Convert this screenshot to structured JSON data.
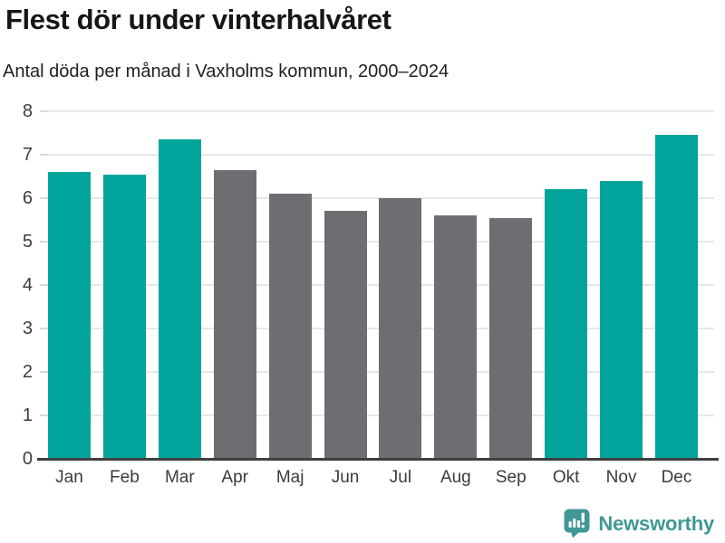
{
  "title": "Flest dör under vinterhalvåret",
  "subtitle": "Antal döda per månad i Vaxholms kommun, 2000–2024",
  "colors": {
    "winter": "#00a49a",
    "summer": "#6e6d72",
    "gridline": "#e7e7e7",
    "axis": "#3f3f3f",
    "brand": "#3f9894"
  },
  "footer": {
    "brand": "Newsworthy",
    "logo_icon": "newsworthy-speech-bubble-bar-chart-icon"
  },
  "chart_data": {
    "type": "bar",
    "title": "Flest dör under vinterhalvåret",
    "subtitle": "Antal döda per månad i Vaxholms kommun, 2000–2024",
    "categories": [
      "Jan",
      "Feb",
      "Mar",
      "Apr",
      "Maj",
      "Jun",
      "Jul",
      "Aug",
      "Sep",
      "Okt",
      "Nov",
      "Dec"
    ],
    "values": [
      6.6,
      6.55,
      7.35,
      6.65,
      6.1,
      5.7,
      6.0,
      5.6,
      5.55,
      6.2,
      6.4,
      7.45
    ],
    "bar_colors": [
      "winter",
      "winter",
      "winter",
      "summer",
      "summer",
      "summer",
      "summer",
      "summer",
      "summer",
      "winter",
      "winter",
      "winter"
    ],
    "xlabel": "",
    "ylabel": "",
    "ylim": [
      0,
      8
    ],
    "yticks": [
      0,
      1,
      2,
      3,
      4,
      5,
      6,
      7,
      8
    ],
    "grid": "horizontal",
    "legend": "none"
  }
}
